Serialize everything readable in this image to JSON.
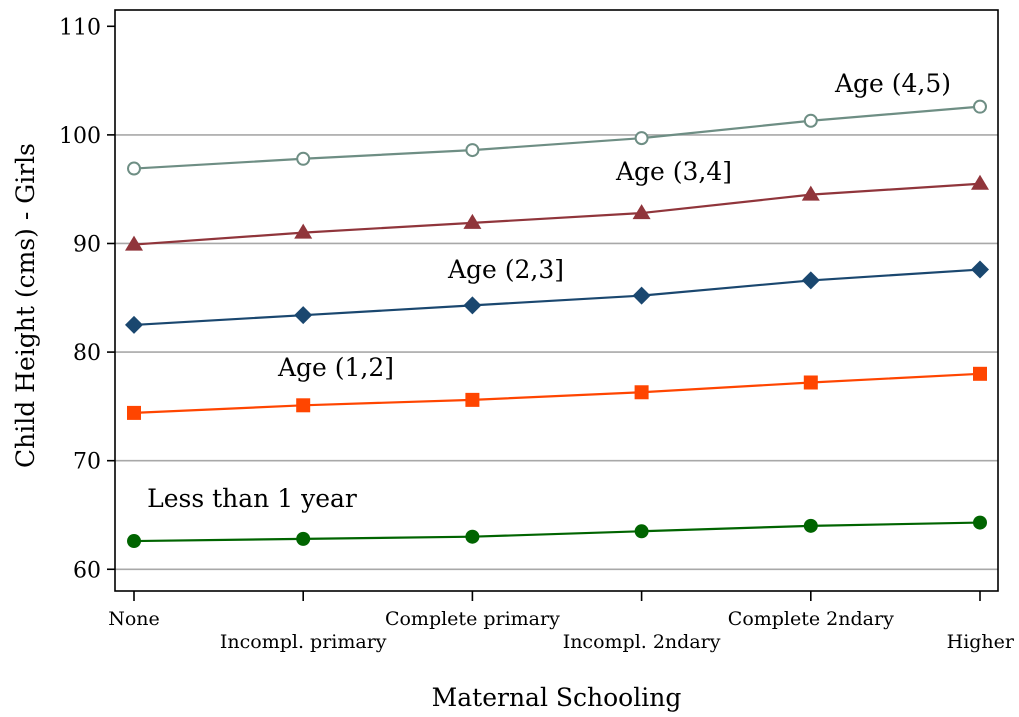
{
  "chart_data": {
    "type": "line",
    "title": "",
    "xlabel": "Maternal Schooling",
    "ylabel": "Child Height (cms) - Girls",
    "ylim": [
      58,
      111.5
    ],
    "yticks": [
      60,
      70,
      80,
      90,
      100,
      110
    ],
    "grid": "horizontal",
    "categories": [
      "None",
      "Incompl. primary",
      "Complete primary",
      "Incompl. 2ndary",
      "Complete 2ndary",
      "Higher"
    ],
    "series": [
      {
        "name": "Less than 1 year",
        "color": "#006400",
        "marker": "circle",
        "values": [
          62.6,
          62.8,
          63.0,
          63.5,
          64.0,
          64.3
        ]
      },
      {
        "name": "Age (1,2]",
        "color": "#ff4500",
        "marker": "square",
        "values": [
          74.4,
          75.1,
          75.6,
          76.3,
          77.2,
          78.0
        ]
      },
      {
        "name": "Age (2,3]",
        "color": "#1a476f",
        "marker": "diamond",
        "values": [
          82.5,
          83.4,
          84.3,
          85.2,
          86.6,
          87.6
        ]
      },
      {
        "name": "Age (3,4]",
        "color": "#90353b",
        "marker": "triangle",
        "values": [
          89.9,
          91.0,
          91.9,
          92.8,
          94.5,
          95.5
        ]
      },
      {
        "name": "Age (4,5)",
        "color": "#6e8e84",
        "marker": "hollow-circle",
        "values": [
          96.9,
          97.8,
          98.6,
          99.7,
          101.3,
          102.6
        ]
      }
    ]
  }
}
